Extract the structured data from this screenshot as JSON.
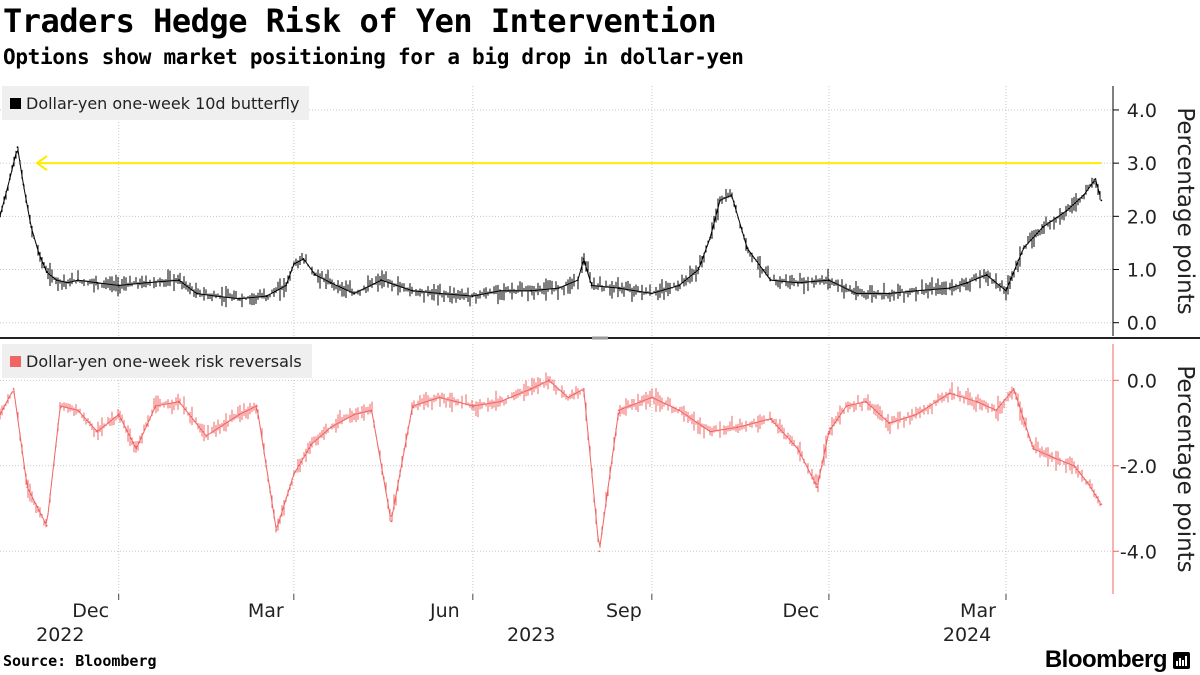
{
  "header": {
    "title": "Traders Hedge Risk of Yen Intervention",
    "subtitle": "Options show market positioning for a big drop in dollar-yen"
  },
  "footer": {
    "source": "Source: Bloomberg",
    "brand": "Bloomberg"
  },
  "colors": {
    "top_series": "#000000",
    "bottom_series": "#f06464",
    "annotation_arrow": "#ffeb00",
    "grid": "#c8c8c8",
    "axis": "#000000"
  },
  "chart_data": [
    {
      "type": "line",
      "ylabel": "Percentage points",
      "ylim": [
        -0.25,
        4.45
      ],
      "yticks": [
        0.0,
        1.0,
        2.0,
        3.0,
        4.0
      ],
      "ytick_labels": [
        "0.0",
        "1.0",
        "2.0",
        "3.0",
        "4.0"
      ],
      "xlim": [
        "2022-10-01",
        "2024-04-25"
      ],
      "x_ticks": [
        {
          "date": "2022-12-01",
          "label": "Dec"
        },
        {
          "date": "2023-03-01",
          "label": "Mar"
        },
        {
          "date": "2023-06-01",
          "label": "Jun"
        },
        {
          "date": "2023-09-01",
          "label": "Sep"
        },
        {
          "date": "2023-12-01",
          "label": "Dec"
        },
        {
          "date": "2024-03-01",
          "label": "Mar"
        }
      ],
      "year_labels": [
        {
          "date": "2022-11-01",
          "label": "2022"
        },
        {
          "date": "2023-07-01",
          "label": "2023"
        },
        {
          "date": "2024-02-10",
          "label": "2024"
        }
      ],
      "grid": true,
      "legend_position": "top-left",
      "series": [
        {
          "name": "Dollar-yen one-week 10d butterfly",
          "x": [
            "2022-10-01",
            "2022-10-06",
            "2022-10-10",
            "2022-10-13",
            "2022-10-17",
            "2022-10-21",
            "2022-10-25",
            "2022-10-30",
            "2022-11-05",
            "2022-11-10",
            "2022-11-20",
            "2022-12-01",
            "2022-12-15",
            "2023-01-01",
            "2023-01-10",
            "2023-01-20",
            "2023-02-01",
            "2023-02-15",
            "2023-02-25",
            "2023-03-01",
            "2023-03-06",
            "2023-03-12",
            "2023-03-20",
            "2023-04-01",
            "2023-04-15",
            "2023-05-01",
            "2023-05-15",
            "2023-06-01",
            "2023-06-15",
            "2023-07-01",
            "2023-07-15",
            "2023-07-25",
            "2023-07-28",
            "2023-08-01",
            "2023-08-15",
            "2023-09-01",
            "2023-09-15",
            "2023-09-25",
            "2023-10-01",
            "2023-10-06",
            "2023-10-12",
            "2023-10-20",
            "2023-11-01",
            "2023-11-15",
            "2023-12-01",
            "2023-12-15",
            "2024-01-01",
            "2024-01-15",
            "2024-02-01",
            "2024-02-10",
            "2024-02-20",
            "2024-03-01",
            "2024-03-10",
            "2024-03-20",
            "2024-04-01",
            "2024-04-10",
            "2024-04-16",
            "2024-04-19"
          ],
          "values": [
            2.0,
            2.7,
            3.3,
            2.6,
            1.8,
            1.3,
            0.95,
            0.8,
            0.75,
            0.8,
            0.75,
            0.7,
            0.75,
            0.8,
            0.55,
            0.5,
            0.45,
            0.5,
            0.7,
            1.1,
            1.2,
            0.9,
            0.75,
            0.55,
            0.8,
            0.6,
            0.55,
            0.5,
            0.6,
            0.6,
            0.65,
            0.8,
            1.2,
            0.7,
            0.65,
            0.55,
            0.7,
            1.0,
            1.6,
            2.3,
            2.4,
            1.4,
            0.8,
            0.75,
            0.8,
            0.55,
            0.55,
            0.6,
            0.65,
            0.75,
            0.9,
            0.6,
            1.4,
            1.8,
            2.1,
            2.4,
            2.7,
            2.3
          ]
        }
      ],
      "annotations": [
        {
          "type": "arrow",
          "y": 3.0,
          "from_date": "2024-04-19",
          "to_date": "2022-10-20"
        }
      ]
    },
    {
      "type": "line",
      "ylabel": "Percentage points",
      "ylim": [
        -5.0,
        0.85
      ],
      "yticks": [
        0.0,
        -2.0,
        -4.0
      ],
      "ytick_labels": [
        "0.0",
        "-2.0",
        "-4.0"
      ],
      "xlim": [
        "2022-10-01",
        "2024-04-25"
      ],
      "grid": true,
      "legend_position": "top-left",
      "series": [
        {
          "name": "Dollar-yen one-week risk reversals",
          "x": [
            "2022-10-01",
            "2022-10-08",
            "2022-10-15",
            "2022-10-25",
            "2022-11-01",
            "2022-11-10",
            "2022-11-20",
            "2022-12-01",
            "2022-12-10",
            "2022-12-20",
            "2023-01-01",
            "2023-01-15",
            "2023-02-01",
            "2023-02-10",
            "2023-02-20",
            "2023-03-01",
            "2023-03-10",
            "2023-03-20",
            "2023-04-01",
            "2023-04-10",
            "2023-04-20",
            "2023-05-01",
            "2023-05-15",
            "2023-06-01",
            "2023-06-15",
            "2023-07-01",
            "2023-07-10",
            "2023-07-20",
            "2023-07-28",
            "2023-08-05",
            "2023-08-15",
            "2023-09-01",
            "2023-09-15",
            "2023-10-01",
            "2023-10-15",
            "2023-11-01",
            "2023-11-15",
            "2023-11-25",
            "2023-12-01",
            "2023-12-10",
            "2023-12-20",
            "2024-01-01",
            "2024-01-15",
            "2024-02-01",
            "2024-02-15",
            "2024-02-25",
            "2024-03-05",
            "2024-03-15",
            "2024-03-25",
            "2024-04-05",
            "2024-04-12",
            "2024-04-19"
          ],
          "values": [
            -0.8,
            -0.2,
            -2.5,
            -3.4,
            -0.6,
            -0.7,
            -1.2,
            -0.8,
            -1.6,
            -0.6,
            -0.5,
            -1.3,
            -0.8,
            -0.6,
            -3.5,
            -2.2,
            -1.5,
            -1.1,
            -0.8,
            -0.7,
            -3.3,
            -0.6,
            -0.4,
            -0.6,
            -0.5,
            -0.2,
            0.0,
            -0.4,
            -0.2,
            -4.0,
            -0.7,
            -0.4,
            -0.7,
            -1.2,
            -1.1,
            -0.9,
            -1.6,
            -2.5,
            -1.2,
            -0.6,
            -0.5,
            -1.0,
            -0.8,
            -0.3,
            -0.5,
            -0.7,
            -0.2,
            -1.6,
            -1.8,
            -2.0,
            -2.4,
            -2.9
          ]
        }
      ]
    }
  ]
}
